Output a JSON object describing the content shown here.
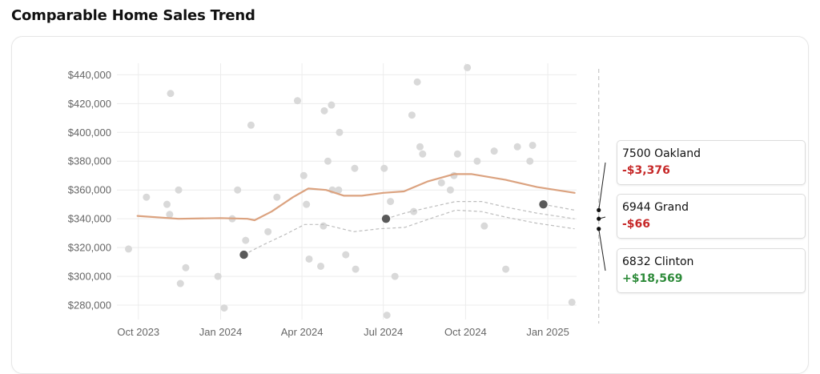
{
  "page": {
    "title": "Comparable Home Sales Trend"
  },
  "colors": {
    "trend": "#dba27f",
    "scatter": "#d9d9d9",
    "highlight": "#595959",
    "band": "#bdbdbd",
    "grid": "#ececec",
    "negative": "#c62828",
    "positive": "#2e8b3a"
  },
  "chart_data": {
    "type": "scatter",
    "title": "Comparable Home Sales Trend",
    "xlabel": "",
    "ylabel": "",
    "xlim": [
      "2023-09-07",
      "2025-03-10"
    ],
    "ylim": [
      270000,
      448000
    ],
    "grid": true,
    "x_ticks": [
      "Oct 2023",
      "Jan 2024",
      "Apr 2024",
      "Jul 2024",
      "Oct 2024",
      "Jan 2025"
    ],
    "y_ticks": [
      "$280,000",
      "$300,000",
      "$320,000",
      "$340,000",
      "$360,000",
      "$380,000",
      "$400,000",
      "$420,000",
      "$440,000"
    ],
    "sales": [
      [
        "2023-09-20",
        319000
      ],
      [
        "2023-10-10",
        355000
      ],
      [
        "2023-11-02",
        350000
      ],
      [
        "2023-11-05",
        343000
      ],
      [
        "2023-11-06",
        427000
      ],
      [
        "2023-11-15",
        360000
      ],
      [
        "2023-11-17",
        295000
      ],
      [
        "2023-11-23",
        306000
      ],
      [
        "2023-12-29",
        300000
      ],
      [
        "2024-01-05",
        278000
      ],
      [
        "2024-01-14",
        340000
      ],
      [
        "2024-01-20",
        360000
      ],
      [
        "2024-01-29",
        325000
      ],
      [
        "2024-02-04",
        405000
      ],
      [
        "2024-02-23",
        331000
      ],
      [
        "2024-03-04",
        355000
      ],
      [
        "2024-03-27",
        422000
      ],
      [
        "2024-04-03",
        370000
      ],
      [
        "2024-04-06",
        350000
      ],
      [
        "2024-04-09",
        312000
      ],
      [
        "2024-04-22",
        307000
      ],
      [
        "2024-04-25",
        335000
      ],
      [
        "2024-04-26",
        415000
      ],
      [
        "2024-04-30",
        380000
      ],
      [
        "2024-05-04",
        419000
      ],
      [
        "2024-05-05",
        360000
      ],
      [
        "2024-05-12",
        360000
      ],
      [
        "2024-05-13",
        400000
      ],
      [
        "2024-05-20",
        315000
      ],
      [
        "2024-05-30",
        375000
      ],
      [
        "2024-05-31",
        305000
      ],
      [
        "2024-07-02",
        375000
      ],
      [
        "2024-07-05",
        273000
      ],
      [
        "2024-07-09",
        352000
      ],
      [
        "2024-07-14",
        300000
      ],
      [
        "2024-08-02",
        412000
      ],
      [
        "2024-08-04",
        345000
      ],
      [
        "2024-08-08",
        435000
      ],
      [
        "2024-08-11",
        390000
      ],
      [
        "2024-08-14",
        385000
      ],
      [
        "2024-09-04",
        365000
      ],
      [
        "2024-09-14",
        360000
      ],
      [
        "2024-09-18",
        370000
      ],
      [
        "2024-09-22",
        385000
      ],
      [
        "2024-10-03",
        445000
      ],
      [
        "2024-10-14",
        380000
      ],
      [
        "2024-10-22",
        335000
      ],
      [
        "2024-11-02",
        387000
      ],
      [
        "2024-11-15",
        305000
      ],
      [
        "2024-11-28",
        390000
      ],
      [
        "2024-12-12",
        380000
      ],
      [
        "2024-12-15",
        391000
      ],
      [
        "2025-01-28",
        282000
      ]
    ],
    "highlighted_sales": [
      [
        "2024-01-27",
        315000
      ],
      [
        "2024-07-04",
        340000
      ],
      [
        "2024-12-27",
        350000
      ]
    ],
    "trend": [
      [
        "2023-09-30",
        342000
      ],
      [
        "2023-11-15",
        340000
      ],
      [
        "2024-01-01",
        340500
      ],
      [
        "2024-01-31",
        340000
      ],
      [
        "2024-02-08",
        339000
      ],
      [
        "2024-02-27",
        345000
      ],
      [
        "2024-03-22",
        355000
      ],
      [
        "2024-04-08",
        361000
      ],
      [
        "2024-04-28",
        360000
      ],
      [
        "2024-05-18",
        356000
      ],
      [
        "2024-06-07",
        356000
      ],
      [
        "2024-07-01",
        358000
      ],
      [
        "2024-07-24",
        359000
      ],
      [
        "2024-08-20",
        366000
      ],
      [
        "2024-09-18",
        371000
      ],
      [
        "2024-10-08",
        371000
      ],
      [
        "2024-11-15",
        367000
      ],
      [
        "2024-12-20",
        362000
      ],
      [
        "2025-01-31",
        358000
      ]
    ],
    "comparison_lines": [
      [
        [
          "2024-01-27",
          315000
        ],
        [
          "2024-02-18",
          322000
        ],
        [
          "2024-03-13",
          329000
        ],
        [
          "2024-04-04",
          336000
        ],
        [
          "2024-04-26",
          336000
        ],
        [
          "2024-05-29",
          331000
        ],
        [
          "2024-06-26",
          333000
        ],
        [
          "2024-07-25",
          334000
        ],
        [
          "2024-08-22",
          340000
        ],
        [
          "2024-09-20",
          346000
        ],
        [
          "2024-10-19",
          345000
        ],
        [
          "2024-11-16",
          341000
        ],
        [
          "2024-12-19",
          337000
        ],
        [
          "2025-01-31",
          333000
        ]
      ],
      [
        [
          "2024-07-04",
          340000
        ],
        [
          "2024-07-25",
          344000
        ],
        [
          "2024-08-22",
          348000
        ],
        [
          "2024-09-20",
          352000
        ],
        [
          "2024-10-19",
          352000
        ],
        [
          "2024-11-16",
          348000
        ],
        [
          "2024-12-19",
          344000
        ],
        [
          "2025-01-31",
          340000
        ]
      ],
      [
        [
          "2024-12-27",
          350000
        ],
        [
          "2025-01-31",
          346000
        ]
      ]
    ],
    "today_marker_date": "2025-02-27"
  },
  "comparables": [
    {
      "name": "7500 Oakland",
      "diff": "-$3,376",
      "sign": "negative"
    },
    {
      "name": "6944 Grand",
      "diff": "-$66",
      "sign": "negative"
    },
    {
      "name": "6832 Clinton",
      "diff": "+$18,569",
      "sign": "positive"
    }
  ]
}
